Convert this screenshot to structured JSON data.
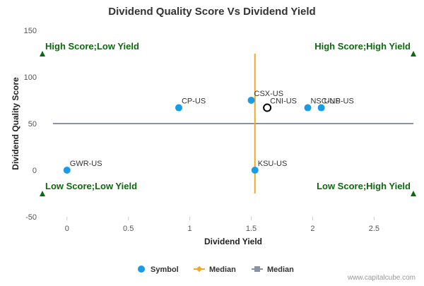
{
  "chart_data": {
    "type": "scatter",
    "title": "Dividend Quality Score Vs Dividend Yield",
    "xlabel": "Dividend Yield",
    "ylabel": "Dividend Quality Score",
    "xlim": [
      -0.2,
      2.82
    ],
    "ylim": [
      -50,
      150
    ],
    "xticks": [
      0,
      0.5,
      1,
      1.5,
      2,
      2.5
    ],
    "yticks": [
      -50,
      0,
      50,
      100,
      150
    ],
    "points": [
      {
        "label": "GWR-US",
        "x": 0.0,
        "y": 0
      },
      {
        "label": "CP-US",
        "x": 0.91,
        "y": 67
      },
      {
        "label": "CSX-US",
        "x": 1.5,
        "y": 75
      },
      {
        "label": "KSU-US",
        "x": 1.53,
        "y": 0
      },
      {
        "label": "NSC-US",
        "x": 1.96,
        "y": 67
      },
      {
        "label": "UNP-US",
        "x": 2.07,
        "y": 67
      }
    ],
    "highlight": {
      "label": "CNI-US",
      "x": 1.63,
      "y": 67
    },
    "median_x": 1.53,
    "median_y": 50,
    "median_x_color": "#f5a623",
    "median_y_color": "#8a93a3",
    "point_color": "#1a9be6",
    "quadrants": {
      "top_left": "High Score;Low Yield",
      "top_right": "High Score;High Yield",
      "bottom_left": "Low Score;Low Yield",
      "bottom_right": "Low Score;High Yield"
    },
    "quadrant_color": "#0a6b0a",
    "legend": [
      "Symbol",
      "Median",
      "Median"
    ]
  },
  "watermark": "www.capitalcube.com"
}
